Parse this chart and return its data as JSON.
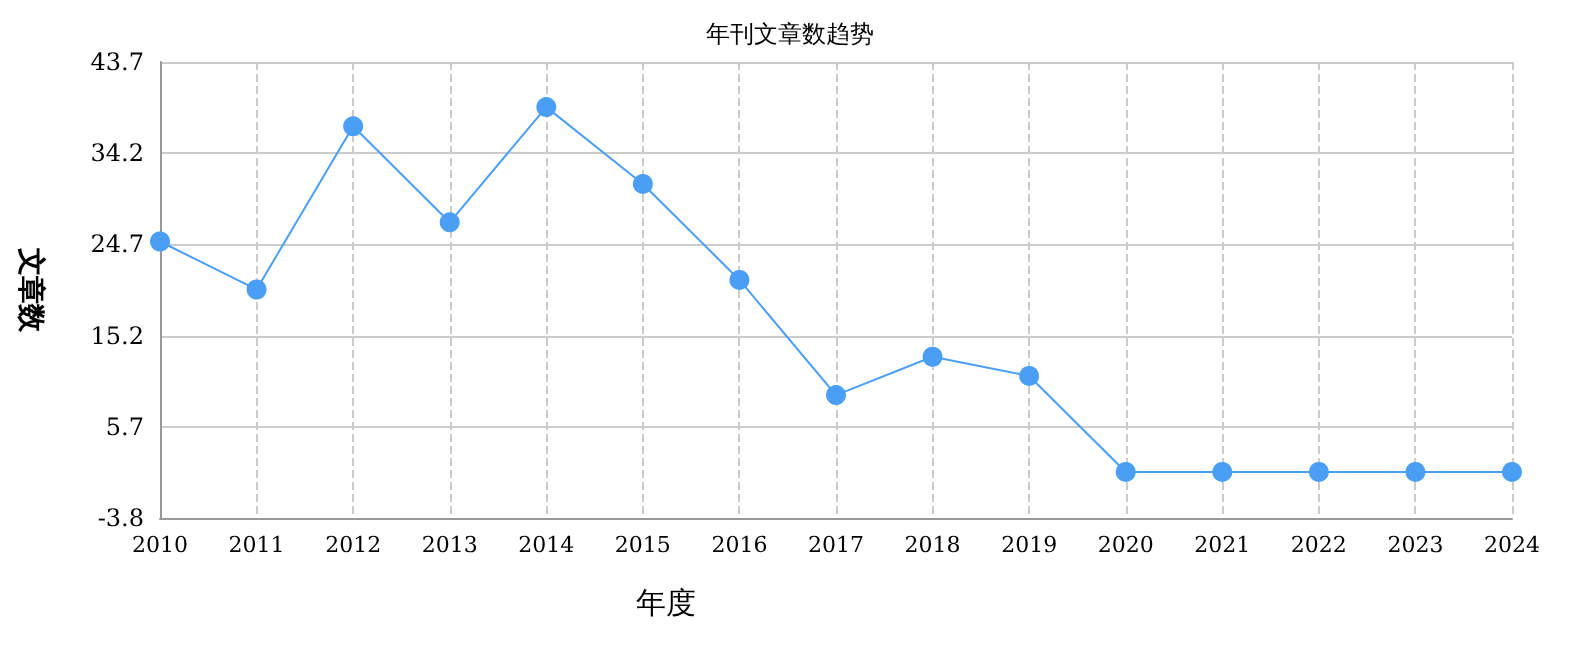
{
  "chart_data": {
    "type": "line",
    "title": "年刊文章数趋势",
    "xlabel": "年度",
    "ylabel": "文章数",
    "categories": [
      "2010",
      "2011",
      "2012",
      "2013",
      "2014",
      "2015",
      "2016",
      "2017",
      "2018",
      "2019",
      "2020",
      "2021",
      "2022",
      "2023",
      "2024"
    ],
    "series": [
      {
        "color": "#4a9ff5",
        "values": [
          25,
          20,
          37,
          27,
          39,
          31,
          21,
          9,
          13,
          11,
          1,
          1,
          1,
          1,
          1
        ]
      }
    ],
    "ylim": [
      -3.8,
      43.7
    ],
    "yticks": [
      -3.8,
      5.7,
      15.2,
      24.7,
      34.2,
      43.7
    ],
    "grid": true,
    "marker": "circle",
    "line_style": "solid"
  }
}
